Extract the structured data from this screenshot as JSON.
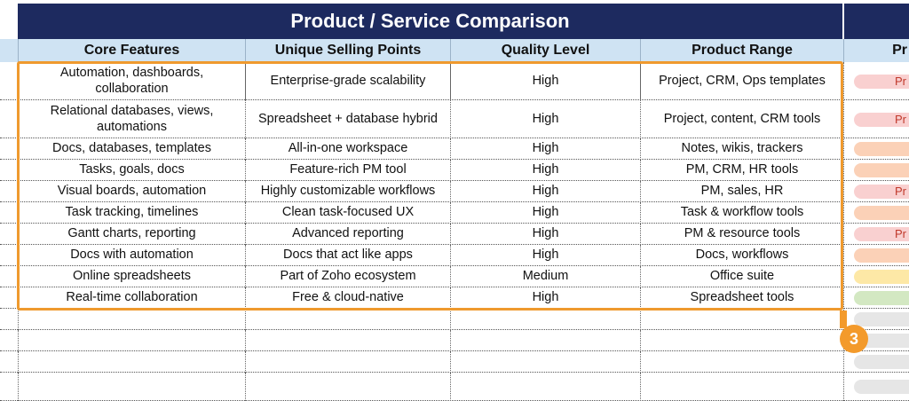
{
  "sheet": {
    "title": "Product / Service Comparison",
    "columns": [
      "Core Features",
      "Unique Selling Points",
      "Quality Level",
      "Product Range",
      "Pr"
    ],
    "rows": [
      {
        "core": "Automation, dashboards, collaboration",
        "usp": "Enterprise-grade scalability",
        "quality": "High",
        "range": "Project, CRM, Ops templates",
        "priority": "Pr"
      },
      {
        "core": "Relational databases, views, automations",
        "usp": "Spreadsheet + database hybrid",
        "quality": "High",
        "range": "Project, content, CRM tools",
        "priority": "Pr"
      },
      {
        "core": "Docs, databases, templates",
        "usp": "All-in-one workspace",
        "quality": "High",
        "range": "Notes, wikis, trackers",
        "priority": ""
      },
      {
        "core": "Tasks, goals, docs",
        "usp": "Feature-rich PM tool",
        "quality": "High",
        "range": "PM, CRM, HR tools",
        "priority": ""
      },
      {
        "core": "Visual boards, automation",
        "usp": "Highly customizable workflows",
        "quality": "High",
        "range": "PM, sales, HR",
        "priority": "Pr"
      },
      {
        "core": "Task tracking, timelines",
        "usp": "Clean task-focused UX",
        "quality": "High",
        "range": "Task & workflow tools",
        "priority": ""
      },
      {
        "core": "Gantt charts, reporting",
        "usp": "Advanced reporting",
        "quality": "High",
        "range": "PM & resource tools",
        "priority": "Pr"
      },
      {
        "core": "Docs with automation",
        "usp": "Docs that act like apps",
        "quality": "High",
        "range": "Docs, workflows",
        "priority": ""
      },
      {
        "core": "Online spreadsheets",
        "usp": "Part of Zoho ecosystem",
        "quality": "Medium",
        "range": "Office suite",
        "priority": ""
      },
      {
        "core": "Real-time collaboration",
        "usp": "Free & cloud-native",
        "quality": "High",
        "range": "Spreadsheet tools",
        "priority": ""
      }
    ]
  },
  "annotation": {
    "badge": "3"
  },
  "colors": {
    "navy": "#1d2a5f",
    "header_blue": "#cfe3f3",
    "highlight_orange": "#ef9a2e",
    "pill_red": "#f9d0d0",
    "pill_orange": "#fbd1b7",
    "pill_yellow": "#fde8a6",
    "pill_green": "#d3e8c2",
    "pill_gray": "#e6e6e6"
  }
}
